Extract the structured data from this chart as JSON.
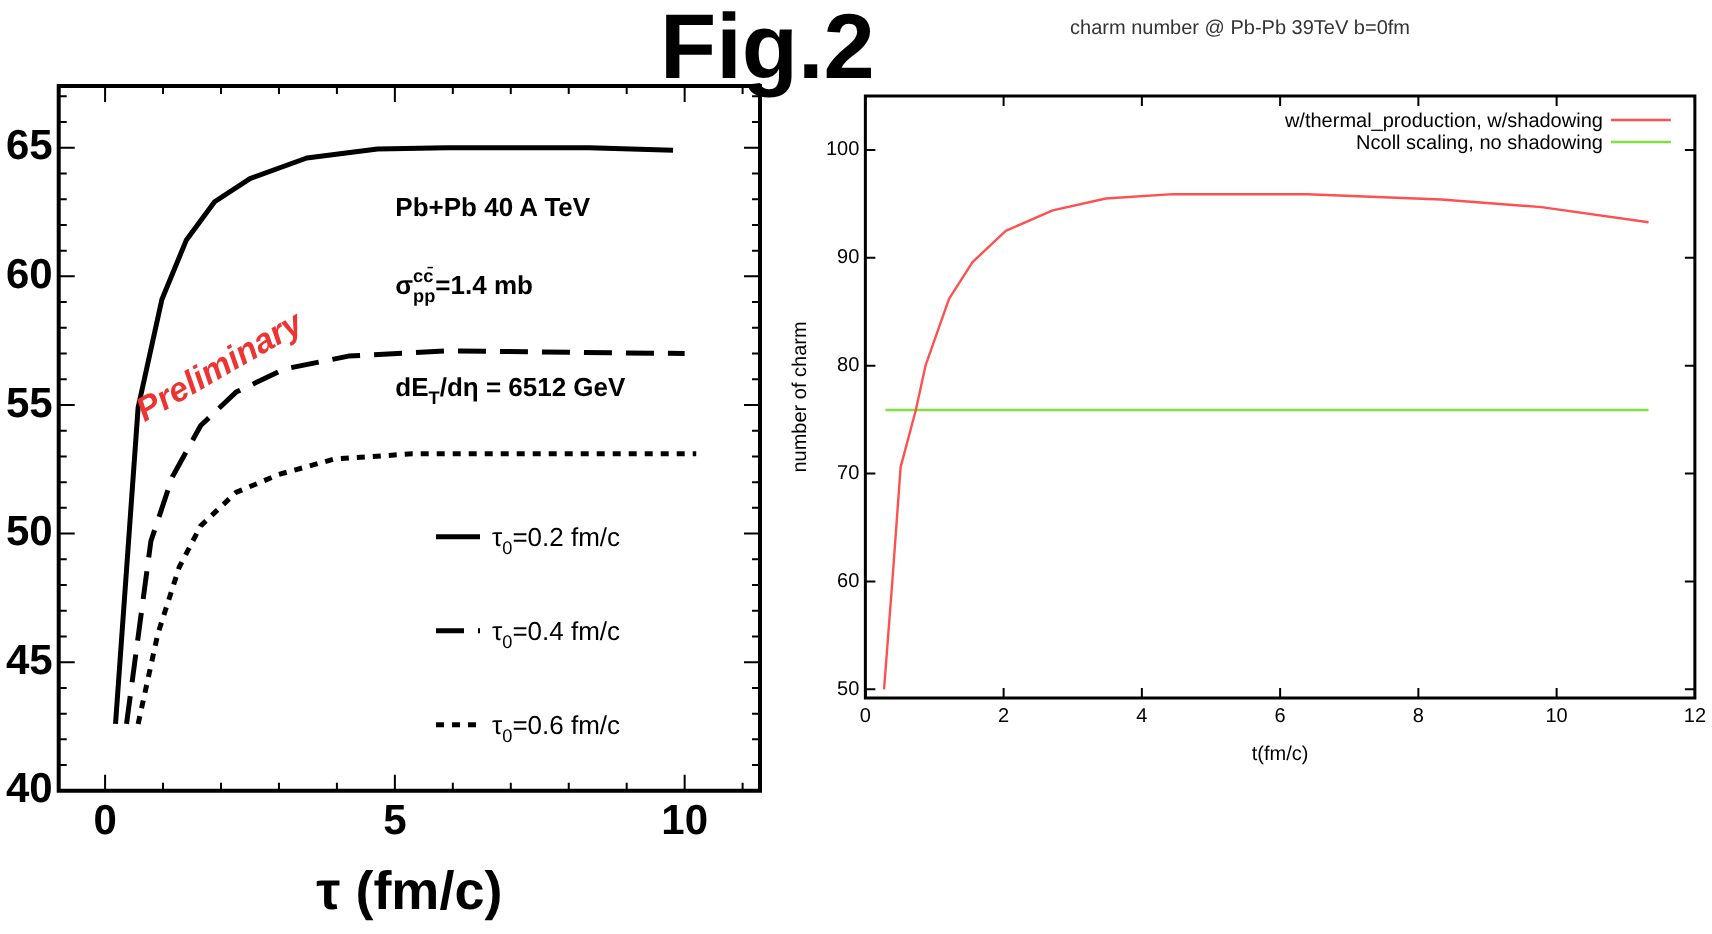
{
  "chart_data": [
    {
      "type": "line",
      "xlabel": "τ (fm/c)",
      "xlim": [
        -0.8,
        11.3
      ],
      "ylim": [
        40,
        67.4
      ],
      "xticks": [
        {
          "value": 0,
          "label": "0"
        },
        {
          "value": 1,
          "label": null
        },
        {
          "value": 2,
          "label": null
        },
        {
          "value": 3,
          "label": null
        },
        {
          "value": 4,
          "label": null
        },
        {
          "value": 5,
          "label": "5"
        },
        {
          "value": 6,
          "label": null
        },
        {
          "value": 7,
          "label": null
        },
        {
          "value": 8,
          "label": null
        },
        {
          "value": 9,
          "label": null
        },
        {
          "value": 10,
          "label": "10"
        },
        {
          "value": 11,
          "label": null
        }
      ],
      "yticks": [
        40,
        {
          "value": 41,
          "label": null
        },
        {
          "value": 42,
          "label": null
        },
        {
          "value": 43,
          "label": null
        },
        {
          "value": 44,
          "label": null
        },
        45,
        {
          "value": 46,
          "label": null
        },
        {
          "value": 47,
          "label": null
        },
        {
          "value": 48,
          "label": null
        },
        {
          "value": 49,
          "label": null
        },
        50,
        {
          "value": 51,
          "label": null
        },
        {
          "value": 52,
          "label": null
        },
        {
          "value": 53,
          "label": null
        },
        {
          "value": 54,
          "label": null
        },
        55,
        {
          "value": 56,
          "label": null
        },
        {
          "value": 57,
          "label": null
        },
        {
          "value": 58,
          "label": null
        },
        {
          "value": 59,
          "label": null
        },
        60,
        {
          "value": 61,
          "label": null
        },
        {
          "value": 62,
          "label": null
        },
        {
          "value": 63,
          "label": null
        },
        {
          "value": 64,
          "label": null
        },
        65,
        {
          "value": 66,
          "label": null
        },
        {
          "value": 67,
          "label": null
        }
      ],
      "grid": false,
      "legend": "bottom right",
      "annotations": [
        "Pb+Pb 40 A TeV",
        "σ$^{cc̄}$$_{pp}$=1.4 mb",
        "dE$_{T}$/dη = 6512 GeV",
        "Preliminary"
      ],
      "series": [
        {
          "name": "τ$_{0}$=0.2 fm/c",
          "color": "#000000",
          "line_style": "solid",
          "x": [
            0.18,
            0.57,
            0.98,
            1.4,
            1.89,
            2.5,
            3.48,
            4.7,
            5.9,
            8.35,
            9.8
          ],
          "values": [
            42.6,
            54.9,
            59.1,
            61.4,
            62.9,
            63.8,
            64.6,
            64.95,
            65,
            65,
            64.9
          ]
        },
        {
          "name": "τ$_{0}$=0.4 fm/c",
          "color": "#000000",
          "line_style": "dashed",
          "x": [
            0.37,
            0.79,
            1.16,
            1.65,
            2.26,
            3.1,
            4.2,
            5.9,
            10
          ],
          "values": [
            42.6,
            49.7,
            52.2,
            54.2,
            55.5,
            56.4,
            56.9,
            57.1,
            57
          ]
        },
        {
          "name": "τ$_{0}$=0.6 fm/c",
          "color": "#000000",
          "line_style": "dotted",
          "x": [
            0.57,
            0.91,
            1.28,
            1.65,
            2.26,
            3,
            3.96,
            5.3,
            10.2
          ],
          "values": [
            42.6,
            46.1,
            48.7,
            50.3,
            51.6,
            52.3,
            52.9,
            53.1,
            53.1
          ]
        }
      ]
    },
    {
      "type": "line",
      "title": "charm number @ Pb-Pb 39TeV b=0fm",
      "xlabel": "t(fm/c)",
      "ylabel": "number of charm",
      "xlim": [
        0,
        12
      ],
      "ylim": [
        49.2,
        105
      ],
      "xticks": [
        0,
        2,
        4,
        6,
        8,
        10,
        12
      ],
      "yticks": [
        50,
        60,
        70,
        80,
        90,
        100
      ],
      "grid": false,
      "legend": "top right",
      "annotations": [
        "Fig.2"
      ],
      "series": [
        {
          "name": "w/thermal_production, w/shadowing",
          "color": "#ff5050",
          "line_style": "solid",
          "x": [
            0.27,
            0.39,
            0.51,
            0.73,
            0.87,
            1.21,
            1.55,
            2.03,
            2.71,
            3.48,
            4.45,
            6.39,
            8.33,
            9.78,
            11.33
          ],
          "values": [
            50,
            60,
            70.6,
            75.9,
            80,
            86.2,
            89.6,
            92.5,
            94.4,
            95.5,
            95.9,
            95.9,
            95.4,
            94.7,
            93.3
          ]
        },
        {
          "name": "Ncoll scaling, no shadowing",
          "color": "#80e040",
          "line_style": "solid",
          "x": [
            0.29,
            11.33
          ],
          "values": [
            75.9,
            75.9
          ]
        }
      ]
    }
  ]
}
